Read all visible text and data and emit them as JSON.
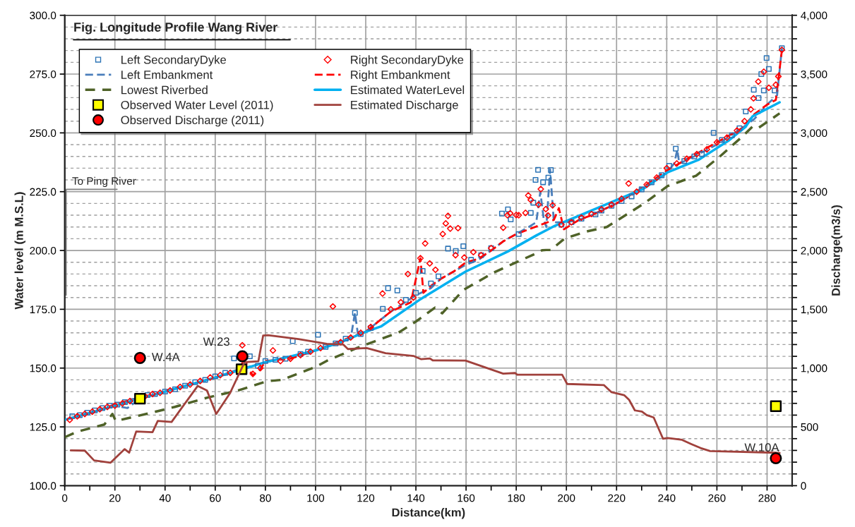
{
  "chart_data": {
    "type": "line",
    "title": "Fig. Longitude Profile Wang River",
    "xlabel": "Distance(km)",
    "ylabel": "Water level (m M.S.L)",
    "y2label": "Discharge(m3/s)",
    "xlim": [
      0,
      290
    ],
    "ylim": [
      100,
      300
    ],
    "y2lim": [
      0,
      4000
    ],
    "xticks": [
      0,
      {
        "value": 10,
        "label": null
      },
      20,
      {
        "value": 30,
        "label": null
      },
      40,
      {
        "value": 50,
        "label": null
      },
      60,
      {
        "value": 70,
        "label": null
      },
      80,
      {
        "value": 90,
        "label": null
      },
      100,
      {
        "value": 110,
        "label": null
      },
      120,
      {
        "value": 130,
        "label": null
      },
      140,
      {
        "value": 150,
        "label": null
      },
      160,
      {
        "value": 170,
        "label": null
      },
      180,
      {
        "value": 190,
        "label": null
      },
      200,
      {
        "value": 210,
        "label": null
      },
      220,
      {
        "value": 230,
        "label": null
      },
      240,
      {
        "value": 250,
        "label": null
      },
      260,
      {
        "value": 270,
        "label": null
      },
      280
    ],
    "yticks": [
      {
        "value": 100,
        "label": "100.0"
      },
      {
        "value": 125,
        "label": "125.0"
      },
      {
        "value": 150,
        "label": "150.0"
      },
      {
        "value": 175,
        "label": "175.0"
      },
      {
        "value": 200,
        "label": "200.0"
      },
      {
        "value": 225,
        "label": "225.0"
      },
      {
        "value": 250,
        "label": "250.0"
      },
      {
        "value": 275,
        "label": "275.0"
      },
      {
        "value": 300,
        "label": "300.0"
      }
    ],
    "y2ticks": [
      0,
      {
        "value": 100,
        "label": null
      },
      {
        "value": 200,
        "label": null
      },
      {
        "value": 300,
        "label": null
      },
      {
        "value": 400,
        "label": null
      },
      500,
      {
        "value": 600,
        "label": null
      },
      {
        "value": 700,
        "label": null
      },
      {
        "value": 800,
        "label": null
      },
      {
        "value": 900,
        "label": null
      },
      {
        "value": 1000,
        "label": "1,000"
      },
      {
        "value": 1100,
        "label": null
      },
      {
        "value": 1200,
        "label": null
      },
      {
        "value": 1300,
        "label": null
      },
      {
        "value": 1400,
        "label": null
      },
      {
        "value": 1500,
        "label": "1,500"
      },
      {
        "value": 1600,
        "label": null
      },
      {
        "value": 1700,
        "label": null
      },
      {
        "value": 1800,
        "label": null
      },
      {
        "value": 1900,
        "label": null
      },
      {
        "value": 2000,
        "label": "2,000"
      },
      {
        "value": 2100,
        "label": null
      },
      {
        "value": 2200,
        "label": null
      },
      {
        "value": 2300,
        "label": null
      },
      {
        "value": 2400,
        "label": null
      },
      {
        "value": 2500,
        "label": "2,500"
      },
      {
        "value": 2600,
        "label": null
      },
      {
        "value": 2700,
        "label": null
      },
      {
        "value": 2800,
        "label": null
      },
      {
        "value": 2900,
        "label": null
      },
      {
        "value": 3000,
        "label": "3,000"
      },
      {
        "value": 3100,
        "label": null
      },
      {
        "value": 3200,
        "label": null
      },
      {
        "value": 3300,
        "label": null
      },
      {
        "value": 3400,
        "label": null
      },
      {
        "value": 3500,
        "label": "3,500"
      },
      {
        "value": 3600,
        "label": null
      },
      {
        "value": 3700,
        "label": null
      },
      {
        "value": 3800,
        "label": null
      },
      {
        "value": 3900,
        "label": null
      },
      {
        "value": 4000,
        "label": "4,000"
      }
    ],
    "grid": true,
    "legend": "top left",
    "annotations": [
      "To Ping River",
      {
        "text": "W.4A",
        "x": 30,
        "y": 154.3
      },
      {
        "text": "W.23",
        "x": 70.8,
        "y": 155
      },
      {
        "text": "W.10A",
        "x": 283.5,
        "y": 111.7
      }
    ],
    "series": [
      {
        "name": "Left SecondaryDyke",
        "type": "scatter",
        "marker": "square",
        "color": "#2e75b6",
        "x": [
          3,
          6,
          9,
          12,
          15,
          18,
          21,
          24,
          27,
          33,
          36,
          40,
          44,
          48,
          52,
          56,
          60,
          64,
          67.5,
          73.8,
          77,
          80,
          84,
          88,
          90.9,
          94,
          97,
          101,
          104,
          108,
          112,
          115.7,
          118,
          122,
          126.8,
          128.9,
          132.6,
          136,
          140,
          142.7,
          146,
          149,
          152.8,
          155.9,
          158.9,
          162,
          166,
          170,
          174.3,
          176.7,
          177.8,
          181,
          185.8,
          186.8,
          187.7,
          188.7,
          190.7,
          192.8,
          193.8,
          198,
          202,
          206,
          211.6,
          214,
          218,
          222,
          226,
          230,
          234,
          238,
          241,
          243.6,
          247,
          251,
          254,
          258.7,
          262,
          266,
          269,
          271.5,
          274.7,
          276.6,
          277.7,
          278.7,
          279.8,
          280.7,
          283,
          285.9
        ],
        "values": [
          129.5,
          130,
          131,
          132,
          133,
          134,
          134.5,
          135.5,
          136,
          138.5,
          139,
          140,
          141,
          142.5,
          144,
          145,
          146.5,
          148,
          154.1,
          155,
          151,
          153,
          153.5,
          154,
          161.5,
          156,
          157,
          164.2,
          159,
          160.5,
          162.5,
          173.5,
          164.5,
          167,
          175.2,
          184,
          183,
          179,
          182,
          191.3,
          186,
          189,
          200.8,
          199.8,
          201.8,
          196,
          198,
          201,
          215.7,
          217.5,
          213.2,
          207,
          216,
          220.3,
          230,
          234.3,
          229,
          231,
          234.2,
          211,
          212,
          213.5,
          215.3,
          217,
          219,
          221,
          223,
          226,
          229,
          232,
          236,
          243.3,
          238,
          240,
          241,
          250,
          247,
          249,
          252,
          259.1,
          268.3,
          264.8,
          275,
          268,
          281.8,
          277.2,
          268,
          286
        ]
      },
      {
        "name": "Left Embankment",
        "line_style": "dashed",
        "color": "#4a7ebb",
        "x": [
          0,
          10,
          20,
          25,
          30,
          40,
          50,
          60,
          68,
          75,
          80,
          90,
          100,
          110,
          114,
          115.7,
          117,
          120,
          130,
          140,
          146,
          150,
          155,
          160,
          165,
          170,
          175,
          180,
          185,
          188,
          189.6,
          191,
          192,
          193.5,
          195,
          200,
          205,
          210,
          220,
          230,
          240,
          243,
          244.2,
          245,
          250,
          260,
          270,
          275,
          280,
          284,
          285.9
        ],
        "values": [
          128,
          131,
          134,
          133,
          137,
          140,
          143,
          146,
          149,
          151,
          152.5,
          154.5,
          157.5,
          161,
          162.5,
          173.5,
          163.5,
          165.5,
          174,
          181,
          184,
          188,
          191,
          194,
          196,
          200,
          204,
          207,
          210,
          212,
          225,
          213,
          210,
          234.5,
          212,
          212,
          213,
          215,
          220,
          226,
          233,
          237,
          242.9,
          237,
          239.5,
          245,
          252,
          256,
          262,
          266,
          286
        ]
      },
      {
        "name": "Lowest Riverbed",
        "line_style": "dashed",
        "color": "#4f6228",
        "x": [
          0,
          5.1,
          15.8,
          19,
          20.4,
          34.5,
          43.9,
          57.1,
          69.2,
          80.5,
          86.7,
          99.8,
          104.5,
          116.2,
          133.4,
          140,
          147.6,
          150.5,
          158.9,
          171,
          179.2,
          187.6,
          190.3,
          191.9,
          193.8,
          199.2,
          207.7,
          216.1,
          231,
          240.4,
          251.7,
          261,
          270.4,
          274.2,
          276.4,
          281.5,
          285
        ],
        "values": [
          120.6,
          123,
          126,
          130.5,
          127.5,
          131,
          133.5,
          137.5,
          140.5,
          144.4,
          145,
          150.4,
          153.1,
          158.4,
          165.3,
          169.8,
          175.7,
          173.3,
          183.2,
          190.6,
          194.6,
          198.6,
          200.1,
          200.2,
          200.2,
          205,
          208,
          210,
          220,
          227.4,
          231.8,
          239.8,
          248.7,
          252.7,
          252,
          255.7,
          258.3
        ]
      },
      {
        "name": "Observed Water Level (2011)",
        "type": "scatter",
        "marker": "square",
        "color": "#ffff00",
        "x": [
          30,
          70.5,
          283.5
        ],
        "values": [
          137,
          149.5,
          133.8
        ]
      },
      {
        "name": "Observed Discharge (2011)",
        "type": "scatter",
        "marker": "circle",
        "axis": "y2",
        "color": "#ff0000",
        "x": [
          30,
          70.8,
          283.5
        ],
        "values": [
          1086,
          1100,
          234
        ]
      },
      {
        "name": "Right SecondaryDyke",
        "type": "scatter",
        "marker": "diamond",
        "color": "#ff0000",
        "x": [
          2,
          5,
          8,
          11,
          14,
          17,
          20,
          23,
          26,
          32,
          35,
          38,
          42,
          46,
          50,
          54,
          58,
          62,
          66,
          70.8,
          71.6,
          75,
          78,
          83,
          86,
          90,
          94,
          98,
          102,
          106.9,
          110,
          114,
          118,
          122,
          126.7,
          130,
          134,
          136.8,
          139,
          141.8,
          143.7,
          145.5,
          147.8,
          150.7,
          151.9,
          152.8,
          153.7,
          155.8,
          156.8,
          159.3,
          162.9,
          166,
          170,
          174.8,
          176.5,
          177.6,
          180,
          181,
          183.7,
          184.8,
          185.8,
          188.9,
          189.8,
          191.8,
          192.7,
          194.5,
          198,
          202,
          206,
          210,
          214,
          218,
          222,
          224.8,
          228,
          232,
          236,
          240,
          244,
          248,
          252,
          256,
          260,
          264,
          268,
          271,
          273.5,
          274.6,
          276.5,
          278.7,
          280.7,
          283.5,
          284.5,
          285.9
        ],
        "values": [
          128,
          129.5,
          130.5,
          131.5,
          132.5,
          133.5,
          134,
          135,
          136,
          138,
          139,
          139.5,
          140.5,
          142,
          143,
          144.5,
          146,
          147,
          148,
          159.7,
          152,
          147.5,
          150,
          157.5,
          153,
          154,
          155.5,
          157,
          158.5,
          176.2,
          161,
          163,
          165,
          167.5,
          181.7,
          175,
          178,
          190,
          180,
          196.7,
          203,
          194.5,
          191.8,
          207,
          211.5,
          214.7,
          209.3,
          198,
          209.5,
          197,
          199.3,
          198,
          201,
          209.7,
          215,
          215.8,
          215.1,
          215,
          216,
          223.4,
          221.5,
          219.5,
          226.1,
          217.6,
          214.9,
          219.2,
          211,
          212,
          214,
          215.5,
          217.5,
          219.5,
          222,
          228.5,
          225,
          228,
          231,
          235,
          237,
          239,
          241,
          243,
          246,
          248,
          251,
          255,
          260,
          264.7,
          271.8,
          276,
          269.2,
          270.5,
          274,
          285.3
        ]
      },
      {
        "name": "Right Embankment",
        "line_style": "dashed",
        "color": "#ff0000",
        "x": [
          0,
          10,
          20,
          30,
          40,
          50,
          60,
          68,
          70.5,
          72,
          75,
          78,
          80,
          90,
          100,
          110,
          120,
          130,
          138,
          141.8,
          143,
          146,
          150,
          155,
          160,
          165,
          170,
          175,
          180,
          185,
          190,
          195,
          197,
          199,
          205,
          210,
          220,
          230,
          240,
          250,
          260,
          270,
          275,
          280,
          283.5,
          285.9
        ],
        "values": [
          128,
          131,
          134.5,
          137.5,
          140,
          143,
          146,
          148.5,
          152,
          151,
          147,
          149.5,
          153,
          154,
          157.5,
          161.5,
          165.5,
          174,
          178,
          196.7,
          182,
          185,
          188,
          191,
          195,
          196.5,
          200,
          204,
          207,
          209,
          211,
          213,
          218,
          209,
          213,
          215,
          220,
          226.5,
          234,
          240,
          246,
          252,
          258,
          262,
          264,
          285
        ]
      },
      {
        "name": "Estimated WaterLevel",
        "line_style": "solid",
        "color": "#00b0f0",
        "x": [
          0,
          10,
          20,
          40,
          50,
          60,
          80,
          90,
          100,
          110,
          119,
          126.1,
          141.4,
          159.8,
          176.7,
          188.2,
          195.4,
          219.6,
          230.8,
          240.4,
          252.6,
          264.8,
          271.4,
          274.2,
          285
        ],
        "values": [
          128,
          131,
          134,
          140,
          143,
          146,
          152.5,
          155,
          157.5,
          161,
          165,
          167.7,
          179,
          191,
          199.6,
          206.5,
          210.5,
          221.3,
          226.3,
          233.3,
          238.5,
          246.8,
          252.5,
          257,
          263
        ]
      },
      {
        "name": "Estimated Discharge",
        "line_style": "solid",
        "axis": "y2",
        "color": "#a0413c",
        "x": [
          2.4,
          8,
          11.7,
          18.3,
          23.9,
          25.7,
          28.5,
          35,
          37.1,
          42.6,
          53,
          56.7,
          60.4,
          65.9,
          71.7,
          77.2,
          79.1,
          81,
          86.6,
          93.2,
          104.5,
          111.1,
          112.9,
          120.4,
          127.9,
          139.2,
          142,
          145.6,
          146.7,
          159.8,
          167.3,
          174.8,
          179.5,
          180.4,
          198.3,
          200.3,
          215,
          218,
          223,
          225,
          227.3,
          230.1,
          232,
          234.8,
          238.5,
          240.4,
          246.1,
          249.8,
          253.5,
          257.3,
          283.7,
          285
        ],
        "values": [
          300,
          298,
          215,
          196,
          311,
          281,
          461,
          455,
          551,
          542,
          848,
          810,
          610,
          787,
          1050,
          1058,
          1276,
          1280,
          1264,
          1246,
          1206,
          1200,
          1162,
          1170,
          1127,
          1102,
          1076,
          1082,
          1066,
          1064,
          1008,
          953,
          958,
          944,
          944,
          865,
          855,
          795,
          770,
          730,
          640,
          630,
          600,
          580,
          400,
          406,
          390,
          354,
          320,
          294,
          280,
          278
        ]
      }
    ]
  }
}
